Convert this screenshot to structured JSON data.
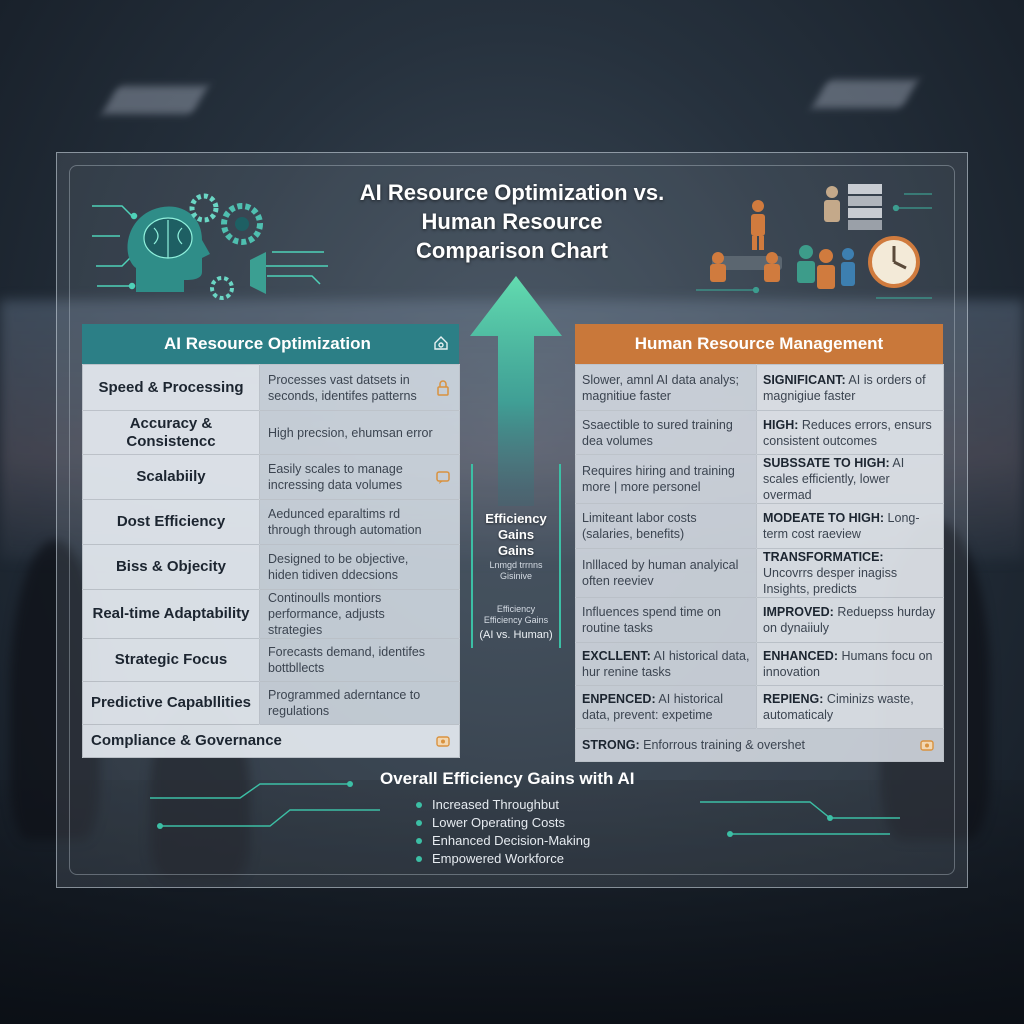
{
  "title": {
    "line1": "AI Resource Optimization vs.",
    "line2": "Human Resource",
    "line3": "Comparison Chart"
  },
  "ai_column": {
    "header": "AI Resource Optimization",
    "rows": [
      {
        "label": "Speed & Processing",
        "desc": "Processes vast datsets in seconds, identifes patterns",
        "icon": "lock-icon"
      },
      {
        "label": "Accuracy & Consistencc",
        "desc": "High precsion, ehumsan error",
        "icon": ""
      },
      {
        "label": "Scalabiily",
        "desc": "Easily scales to manage incressing data volumes",
        "icon": "chat-icon"
      },
      {
        "label": "Dost Efficiency",
        "desc": "Aedunced eparaltims rd through through automation",
        "icon": ""
      },
      {
        "label": "Biss & Objecity",
        "desc": "Designed to be objective, hiden tidiven ddecsions",
        "icon": ""
      },
      {
        "label": "Real-time Adaptability",
        "desc": "Continoulls montiors performance, adjusts strategies",
        "icon": ""
      },
      {
        "label": "Strategic Focus",
        "desc": "Forecasts demand, identifes bottbllects",
        "icon": ""
      },
      {
        "label": "Predictive Capabllities",
        "desc": "Programmed aderntance to regulations",
        "icon": ""
      },
      {
        "label": "Compliance & Governance",
        "desc": "",
        "icon": "badge-icon"
      }
    ]
  },
  "hr_column": {
    "header": "Human Resource Management",
    "rows": [
      {
        "left": "Slower, amnl AI data analys; magnitiue faster",
        "right_bold": "SIGNIFICANT:",
        "right": " AI is orders of magnigiue faster"
      },
      {
        "left": "Ssaectible to sured training dea volumes",
        "right_bold": "HIGH:",
        "right": " Reduces errors, ensurs consistent outcomes"
      },
      {
        "left": "Requires hiring and training more | more personel",
        "right_bold": "SUBSSATE TO HIGH:",
        "right": " AI scales efficiently, lower overmad"
      },
      {
        "left": "Limiteant labor costs (salaries, benefits)",
        "right_bold": "MODEATE TO HIGH:",
        "right": " Long-term cost raeview"
      },
      {
        "left": "Inlllaced by human analyical often reeviev",
        "right_bold": "TRANSFORMATICE:",
        "right": " Uncovrrs desper inagiss Insights, predicts"
      },
      {
        "left": "Influences spend time on routine tasks",
        "right_bold": "IMPROVED:",
        "right": " Reduepss hurday on dynaiiuly"
      },
      {
        "left_bold": "EXCLLENT:",
        "left": " AI historical data, hur renine tasks",
        "right_bold": "ENHANCED:",
        "right": " Humans focu on innovation"
      },
      {
        "left_bold": "ENPENCED:",
        "left": " AI historical data, prevent: expetime",
        "right_bold": "REPIENG:",
        "right": " Ciminizs waste, automaticaly"
      }
    ],
    "last_row": {
      "bold": "STRONG:",
      "text": " Enforrous training & overshet",
      "icon": "badge-icon"
    }
  },
  "middle": {
    "efficiency_line1": "Efficiency",
    "efficiency_line2": "Gains",
    "efficiency_line3": "Gains",
    "small1": "Lnmgd trrnns",
    "small2": "Gisinive",
    "small3": "Efficiency",
    "small4": "Efficiency Gains",
    "paren": "(AI vs. Human)"
  },
  "overall": {
    "title": "Overall Efficiency Gains with AI",
    "bullets": [
      "Increased Throughbut",
      "Lower Operating Costs",
      "Enhanced Decision-Making",
      "Empowered Workforce"
    ]
  },
  "colors": {
    "ai_header": "#2c7f86",
    "hr_header": "#c9783a",
    "accent_teal": "#3cbfa5",
    "icon_orange": "#d9923f"
  }
}
